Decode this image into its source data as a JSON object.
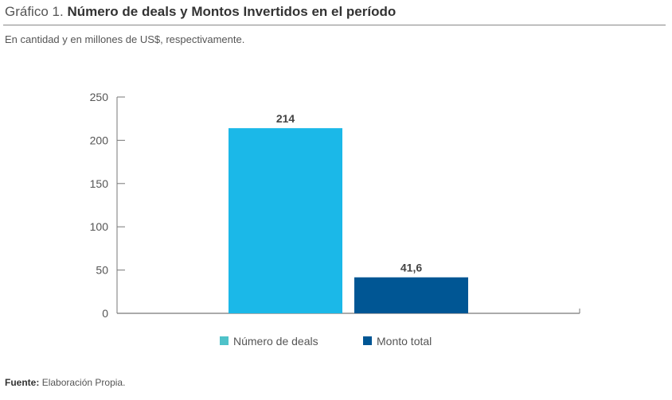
{
  "header": {
    "title_prefix": "Gráfico 1.",
    "title_main": "Número de deals y Montos Invertidos en el período",
    "subtitle": "En cantidad y en millones de US$, respectivamente."
  },
  "footer": {
    "source_label": "Fuente:",
    "source_text": "Elaboración Propia."
  },
  "chart_data": {
    "type": "bar",
    "title": "Número de deals y Montos Invertidos en el período",
    "subtitle": "En cantidad y en millones de US$, respectivamente.",
    "categories": [
      "Número de deals",
      "Monto total"
    ],
    "values": [
      214,
      41.6
    ],
    "data_labels": [
      "214",
      "41,6"
    ],
    "colors": [
      "#1bb8e8",
      "#005694"
    ],
    "legend_colors": [
      "#4fc2c9",
      "#005694"
    ],
    "ylim": [
      0,
      250
    ],
    "yticks": [
      0,
      50,
      100,
      150,
      200,
      250
    ],
    "grid": false,
    "legend": "bottom",
    "xlabel": "",
    "ylabel": ""
  }
}
